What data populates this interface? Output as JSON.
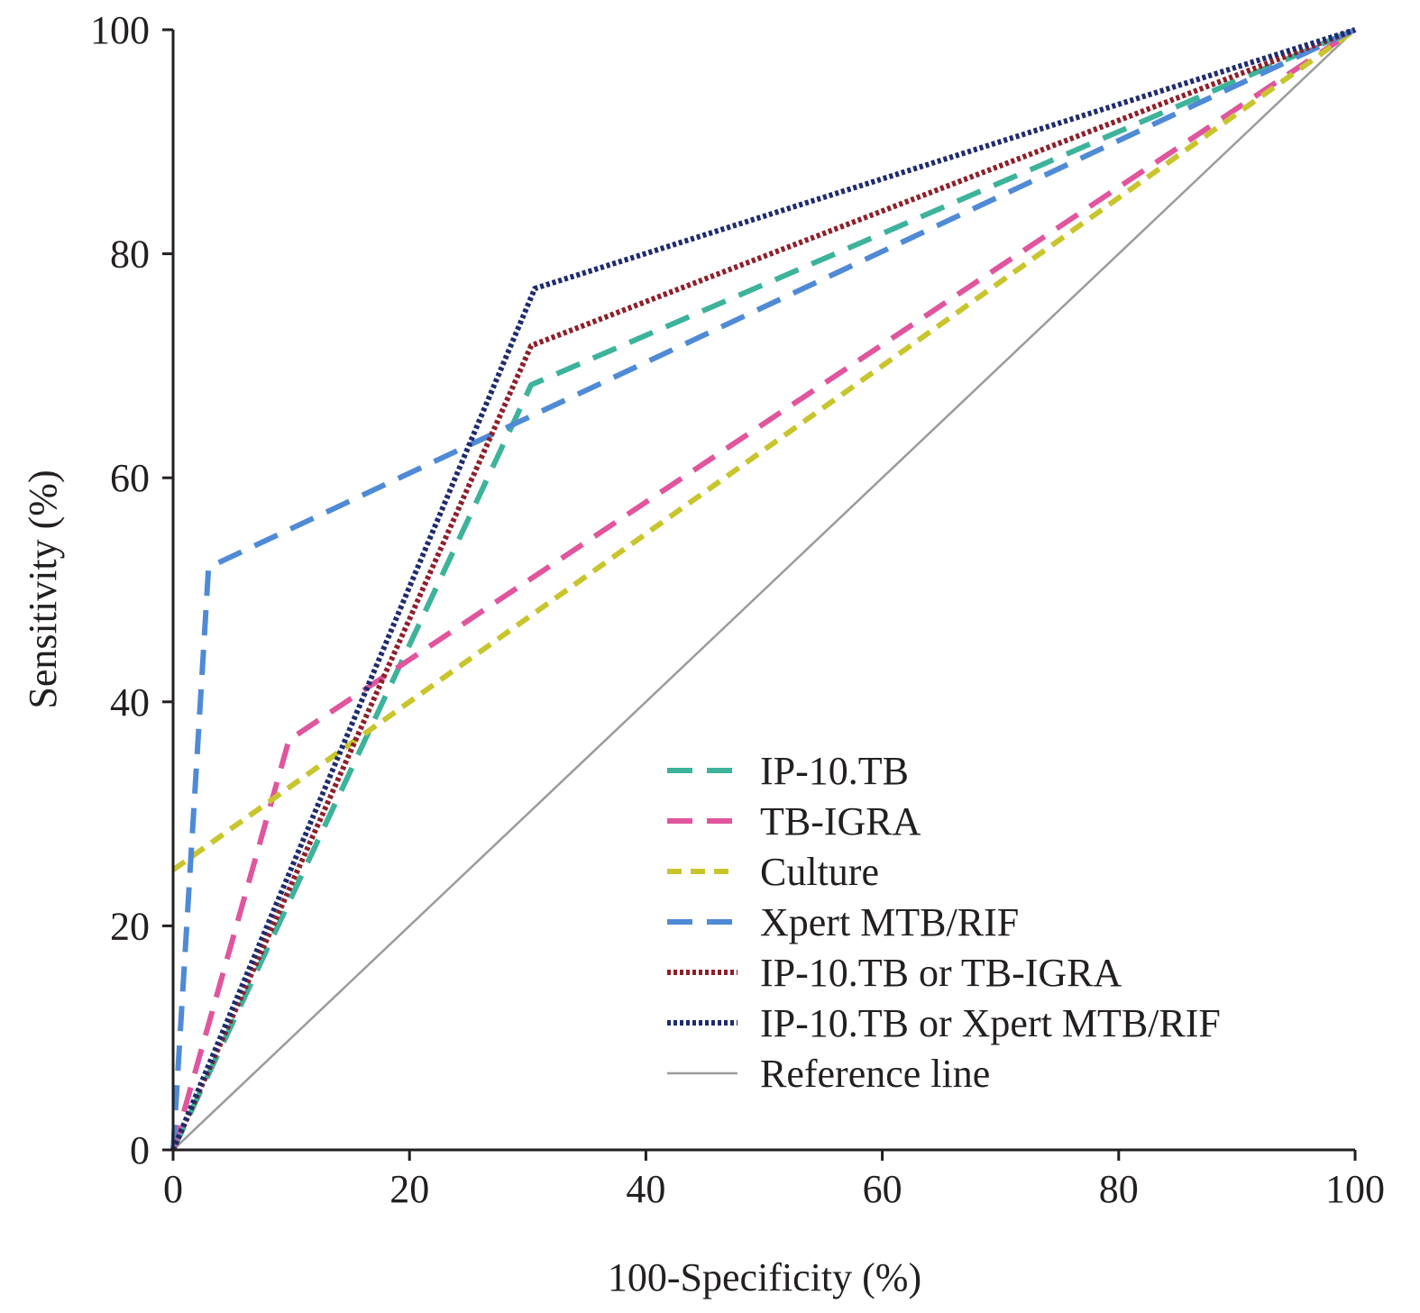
{
  "chart_data": {
    "type": "line",
    "xlabel": "100-Specificity (%)",
    "ylabel": "Sensitivity (%)",
    "xlim": [
      0,
      100
    ],
    "ylim": [
      0,
      100
    ],
    "x_ticks": [
      "0",
      "20",
      "40",
      "60",
      "80",
      "100"
    ],
    "y_ticks": [
      "0",
      "20",
      "40",
      "60",
      "80",
      "100"
    ],
    "grid": false,
    "legend_position": "bottom-right",
    "series": [
      {
        "name": "IP-10.TB",
        "color": "#3cb39a",
        "style": "dashed",
        "x": [
          0,
          30.3,
          100
        ],
        "y": [
          0,
          68.3,
          100
        ]
      },
      {
        "name": "TB-IGRA",
        "color": "#e0559d",
        "style": "dashed",
        "x": [
          0,
          9.8,
          100
        ],
        "y": [
          0,
          36.6,
          100
        ]
      },
      {
        "name": "Culture",
        "color": "#c8c52d",
        "style": "dotted-dashed",
        "x": [
          0,
          100
        ],
        "y": [
          25.0,
          100
        ]
      },
      {
        "name": "Xpert MTB/RIF",
        "color": "#4f8ad6",
        "style": "dashed",
        "x": [
          0,
          3.0,
          100
        ],
        "y": [
          0,
          52.0,
          100
        ]
      },
      {
        "name": "IP-10.TB or TB-IGRA",
        "color": "#8e1f2a",
        "style": "dotted",
        "x": [
          0,
          30.3,
          100
        ],
        "y": [
          0,
          71.8,
          100
        ]
      },
      {
        "name": "IP-10.TB or Xpert MTB/RIF",
        "color": "#1f2b6e",
        "style": "dotted",
        "x": [
          0,
          30.6,
          100
        ],
        "y": [
          0,
          76.9,
          100
        ]
      },
      {
        "name": "Reference line",
        "color": "#9b9b9b",
        "style": "solid",
        "x": [
          0,
          100
        ],
        "y": [
          0,
          100
        ]
      }
    ]
  }
}
